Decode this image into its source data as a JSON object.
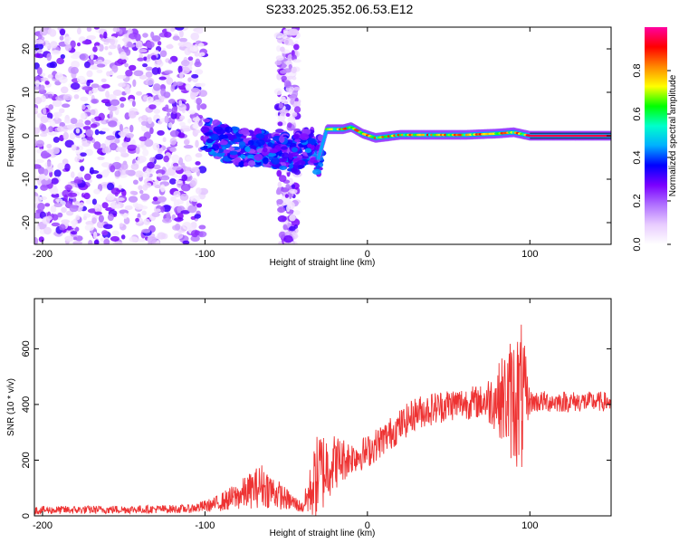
{
  "title": "S233.2025.352.06.53.E12",
  "chart_data": [
    {
      "type": "heatmap",
      "name": "spectrogram",
      "xlabel": "Height of straight line (km)",
      "ylabel": "Frequency (Hz)",
      "xlim": [
        -205,
        150
      ],
      "ylim": [
        -25,
        25
      ],
      "xticks": [
        -200,
        -100,
        0,
        100
      ],
      "yticks": [
        -20,
        -10,
        0,
        10,
        20
      ],
      "colorbar": {
        "label": "Normalized spectral amplitude",
        "range": [
          0.0,
          1.0
        ],
        "ticks": [
          "0.0",
          "0.2",
          "0.4",
          "0.6",
          "0.8"
        ],
        "tick_values": [
          0.0,
          0.2,
          0.4,
          0.6,
          0.8
        ],
        "colors": [
          "#ffffff",
          "#e8ccff",
          "#b070ff",
          "#7a00ff",
          "#0000ff",
          "#00b0ff",
          "#00ffcc",
          "#00ff00",
          "#ffff00",
          "#ff8800",
          "#ff0000",
          "#ff00a0"
        ]
      },
      "ridge": [
        {
          "x": -100,
          "f": 0.5
        },
        {
          "x": -90,
          "f": -1.5
        },
        {
          "x": -80,
          "f": -2.5
        },
        {
          "x": -60,
          "f": -3.0
        },
        {
          "x": -45,
          "f": -4.0
        },
        {
          "x": -35,
          "f": -2.0
        },
        {
          "x": -30,
          "f": -5.0
        },
        {
          "x": -25,
          "f": 1.5
        },
        {
          "x": -15,
          "f": 1.5
        },
        {
          "x": -10,
          "f": 2.0
        },
        {
          "x": -3,
          "f": 0.5
        },
        {
          "x": 5,
          "f": -0.5
        },
        {
          "x": 20,
          "f": 0.2
        },
        {
          "x": 60,
          "f": 0.2
        },
        {
          "x": 80,
          "f": 0.5
        },
        {
          "x": 90,
          "f": 0.8
        },
        {
          "x": 100,
          "f": 0.0
        },
        {
          "x": 150,
          "f": 0.0
        }
      ]
    },
    {
      "type": "line",
      "name": "snr",
      "xlabel": "Height of straight line (km)",
      "ylabel": "SNR (10 * v/v)",
      "xlim": [
        -205,
        150
      ],
      "ylim": [
        0,
        780
      ],
      "xticks": [
        -200,
        -100,
        0,
        100
      ],
      "yticks": [
        0,
        200,
        400,
        600
      ],
      "color": "#ee3333",
      "envelope": [
        {
          "x": -205,
          "mean": 20,
          "amp": 15
        },
        {
          "x": -110,
          "mean": 25,
          "amp": 15
        },
        {
          "x": -95,
          "mean": 40,
          "amp": 25
        },
        {
          "x": -80,
          "mean": 70,
          "amp": 50
        },
        {
          "x": -65,
          "mean": 110,
          "amp": 80
        },
        {
          "x": -50,
          "mean": 60,
          "amp": 40
        },
        {
          "x": -40,
          "mean": 30,
          "amp": 20
        },
        {
          "x": -30,
          "mean": 150,
          "amp": 170
        },
        {
          "x": -22,
          "mean": 190,
          "amp": 110
        },
        {
          "x": -10,
          "mean": 210,
          "amp": 60
        },
        {
          "x": 0,
          "mean": 230,
          "amp": 60
        },
        {
          "x": 15,
          "mean": 300,
          "amp": 60
        },
        {
          "x": 30,
          "mean": 370,
          "amp": 60
        },
        {
          "x": 50,
          "mean": 400,
          "amp": 60
        },
        {
          "x": 70,
          "mean": 410,
          "amp": 60
        },
        {
          "x": 80,
          "mean": 420,
          "amp": 120
        },
        {
          "x": 88,
          "mean": 420,
          "amp": 220
        },
        {
          "x": 95,
          "mean": 420,
          "amp": 280
        },
        {
          "x": 100,
          "mean": 410,
          "amp": 40
        },
        {
          "x": 150,
          "mean": 410,
          "amp": 35
        }
      ]
    }
  ]
}
